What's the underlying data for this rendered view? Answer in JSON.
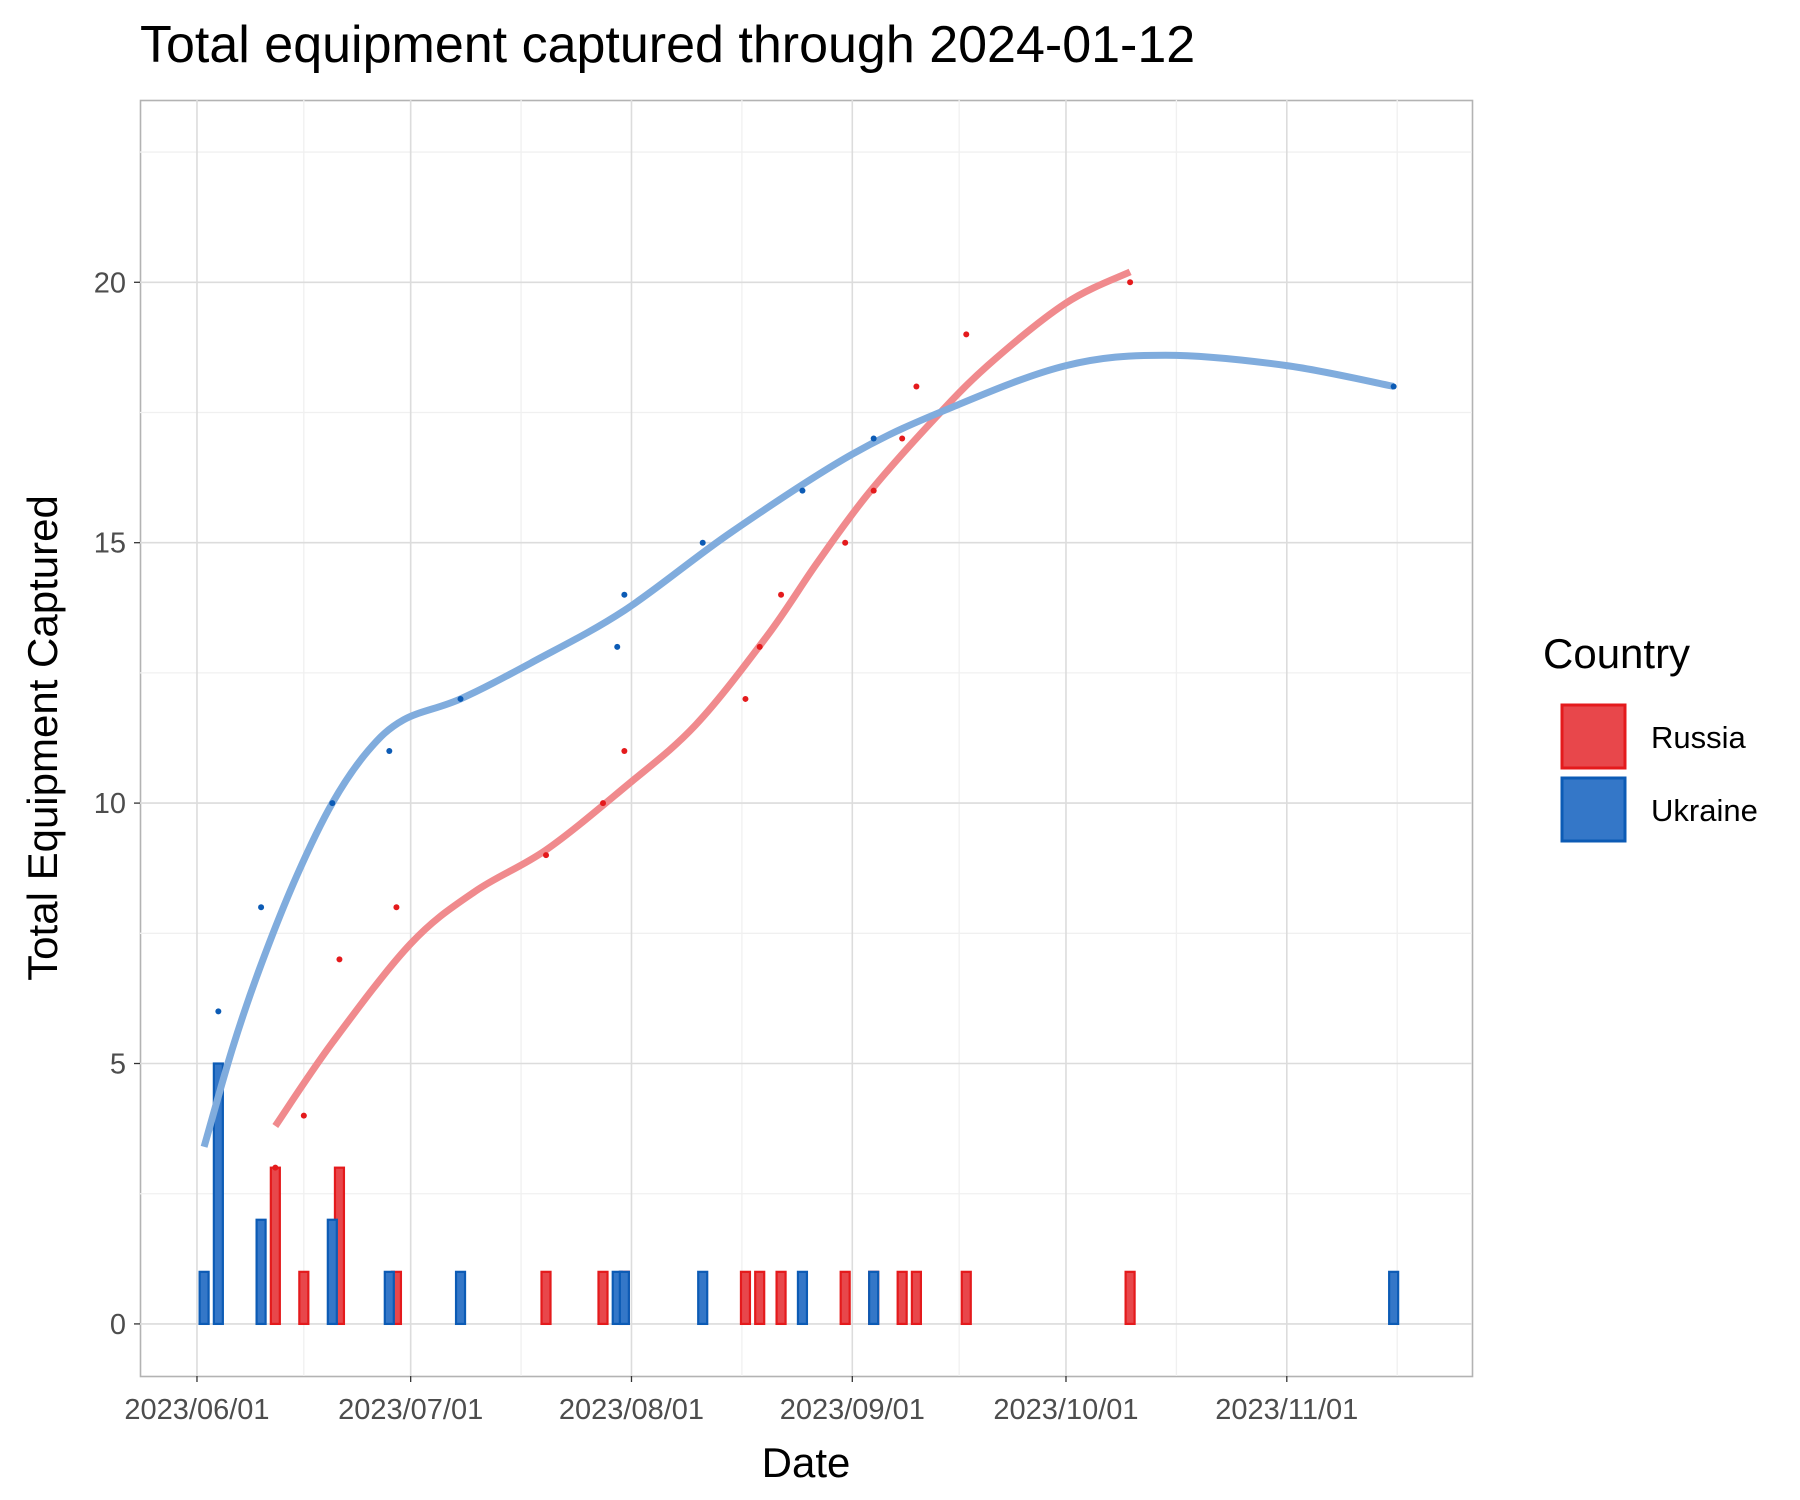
{
  "chart_data": {
    "type": "line",
    "title": "Total equipment captured through 2024-01-12",
    "xlabel": "Date",
    "ylabel": "Total Equipment Captured",
    "x_type": "date",
    "xlim": [
      "2023-05-24",
      "2023-11-27"
    ],
    "ylim": [
      -1,
      23.5
    ],
    "x_ticks": [
      "2023-06-01",
      "2023-07-01",
      "2023-08-01",
      "2023-09-01",
      "2023-10-01",
      "2023-11-01"
    ],
    "x_tick_labels": [
      "2023/06/01",
      "2023/07/01",
      "2023/08/01",
      "2023/09/01",
      "2023/10/01",
      "2023/11/01"
    ],
    "y_ticks": [
      0,
      5,
      10,
      15,
      20
    ],
    "y_tick_labels": [
      "0",
      "5",
      "10",
      "15",
      "20"
    ],
    "grid": true,
    "legend": {
      "title": "Country",
      "position": "right",
      "entries": [
        "Russia",
        "Ukraine"
      ]
    },
    "series": [
      {
        "name": "Russia",
        "color": "#e41a1c",
        "fill": "#e8474b",
        "smooth_color": "#f08a8d",
        "daily": [
          {
            "date": "2023-06-12",
            "count": 3
          },
          {
            "date": "2023-06-16",
            "count": 1
          },
          {
            "date": "2023-06-21",
            "count": 3
          },
          {
            "date": "2023-06-29",
            "count": 1
          },
          {
            "date": "2023-07-20",
            "count": 1
          },
          {
            "date": "2023-07-28",
            "count": 1
          },
          {
            "date": "2023-07-31",
            "count": 1
          },
          {
            "date": "2023-08-17",
            "count": 1
          },
          {
            "date": "2023-08-19",
            "count": 1
          },
          {
            "date": "2023-08-22",
            "count": 1
          },
          {
            "date": "2023-08-31",
            "count": 1
          },
          {
            "date": "2023-09-04",
            "count": 1
          },
          {
            "date": "2023-09-08",
            "count": 1
          },
          {
            "date": "2023-09-10",
            "count": 1
          },
          {
            "date": "2023-09-17",
            "count": 1
          },
          {
            "date": "2023-10-10",
            "count": 1
          }
        ],
        "cumulative": [
          {
            "date": "2023-06-12",
            "total": 3
          },
          {
            "date": "2023-06-16",
            "total": 4
          },
          {
            "date": "2023-06-21",
            "total": 7
          },
          {
            "date": "2023-06-29",
            "total": 8
          },
          {
            "date": "2023-07-20",
            "total": 9
          },
          {
            "date": "2023-07-28",
            "total": 10
          },
          {
            "date": "2023-07-31",
            "total": 11
          },
          {
            "date": "2023-08-17",
            "total": 12
          },
          {
            "date": "2023-08-19",
            "total": 13
          },
          {
            "date": "2023-08-22",
            "total": 14
          },
          {
            "date": "2023-08-31",
            "total": 15
          },
          {
            "date": "2023-09-04",
            "total": 16
          },
          {
            "date": "2023-09-08",
            "total": 17
          },
          {
            "date": "2023-09-10",
            "total": 18
          },
          {
            "date": "2023-09-17",
            "total": 19
          },
          {
            "date": "2023-10-10",
            "total": 20
          }
        ],
        "smooth": [
          {
            "date": "2023-06-12",
            "value": 3.8
          },
          {
            "date": "2023-06-20",
            "value": 5.4
          },
          {
            "date": "2023-07-01",
            "value": 7.3
          },
          {
            "date": "2023-07-10",
            "value": 8.3
          },
          {
            "date": "2023-07-20",
            "value": 9.1
          },
          {
            "date": "2023-07-31",
            "value": 10.3
          },
          {
            "date": "2023-08-10",
            "value": 11.5
          },
          {
            "date": "2023-08-20",
            "value": 13.2
          },
          {
            "date": "2023-08-27",
            "value": 14.6
          },
          {
            "date": "2023-09-03",
            "value": 15.9
          },
          {
            "date": "2023-09-12",
            "value": 17.3
          },
          {
            "date": "2023-09-20",
            "value": 18.4
          },
          {
            "date": "2023-10-01",
            "value": 19.6
          },
          {
            "date": "2023-10-10",
            "value": 20.2
          }
        ]
      },
      {
        "name": "Ukraine",
        "color": "#0c5bb5",
        "fill": "#3477c8",
        "smooth_color": "#80acdd",
        "daily": [
          {
            "date": "2023-06-02",
            "count": 1
          },
          {
            "date": "2023-06-04",
            "count": 5
          },
          {
            "date": "2023-06-10",
            "count": 2
          },
          {
            "date": "2023-06-20",
            "count": 2
          },
          {
            "date": "2023-06-28",
            "count": 1
          },
          {
            "date": "2023-07-08",
            "count": 1
          },
          {
            "date": "2023-07-30",
            "count": 1
          },
          {
            "date": "2023-07-31",
            "count": 1
          },
          {
            "date": "2023-08-11",
            "count": 1
          },
          {
            "date": "2023-08-25",
            "count": 1
          },
          {
            "date": "2023-09-04",
            "count": 1
          },
          {
            "date": "2023-11-16",
            "count": 1
          }
        ],
        "cumulative": [
          {
            "date": "2023-06-04",
            "total": 6
          },
          {
            "date": "2023-06-10",
            "total": 8
          },
          {
            "date": "2023-06-20",
            "total": 10
          },
          {
            "date": "2023-06-28",
            "total": 11
          },
          {
            "date": "2023-07-08",
            "total": 12
          },
          {
            "date": "2023-07-30",
            "total": 13
          },
          {
            "date": "2023-07-31",
            "total": 14
          },
          {
            "date": "2023-08-11",
            "total": 15
          },
          {
            "date": "2023-08-25",
            "total": 16
          },
          {
            "date": "2023-09-04",
            "total": 17
          },
          {
            "date": "2023-11-16",
            "total": 18
          }
        ],
        "smooth": [
          {
            "date": "2023-06-02",
            "value": 3.4
          },
          {
            "date": "2023-06-06",
            "value": 5.3
          },
          {
            "date": "2023-06-10",
            "value": 6.9
          },
          {
            "date": "2023-06-15",
            "value": 8.6
          },
          {
            "date": "2023-06-20",
            "value": 10.0
          },
          {
            "date": "2023-06-25",
            "value": 11.0
          },
          {
            "date": "2023-06-30",
            "value": 11.6
          },
          {
            "date": "2023-07-08",
            "value": 12.0
          },
          {
            "date": "2023-07-18",
            "value": 12.7
          },
          {
            "date": "2023-07-31",
            "value": 13.7
          },
          {
            "date": "2023-08-15",
            "value": 15.2
          },
          {
            "date": "2023-09-01",
            "value": 16.7
          },
          {
            "date": "2023-09-15",
            "value": 17.6
          },
          {
            "date": "2023-10-01",
            "value": 18.4
          },
          {
            "date": "2023-10-15",
            "value": 18.6
          },
          {
            "date": "2023-11-01",
            "value": 18.4
          },
          {
            "date": "2023-11-16",
            "value": 18.0
          }
        ]
      }
    ]
  }
}
